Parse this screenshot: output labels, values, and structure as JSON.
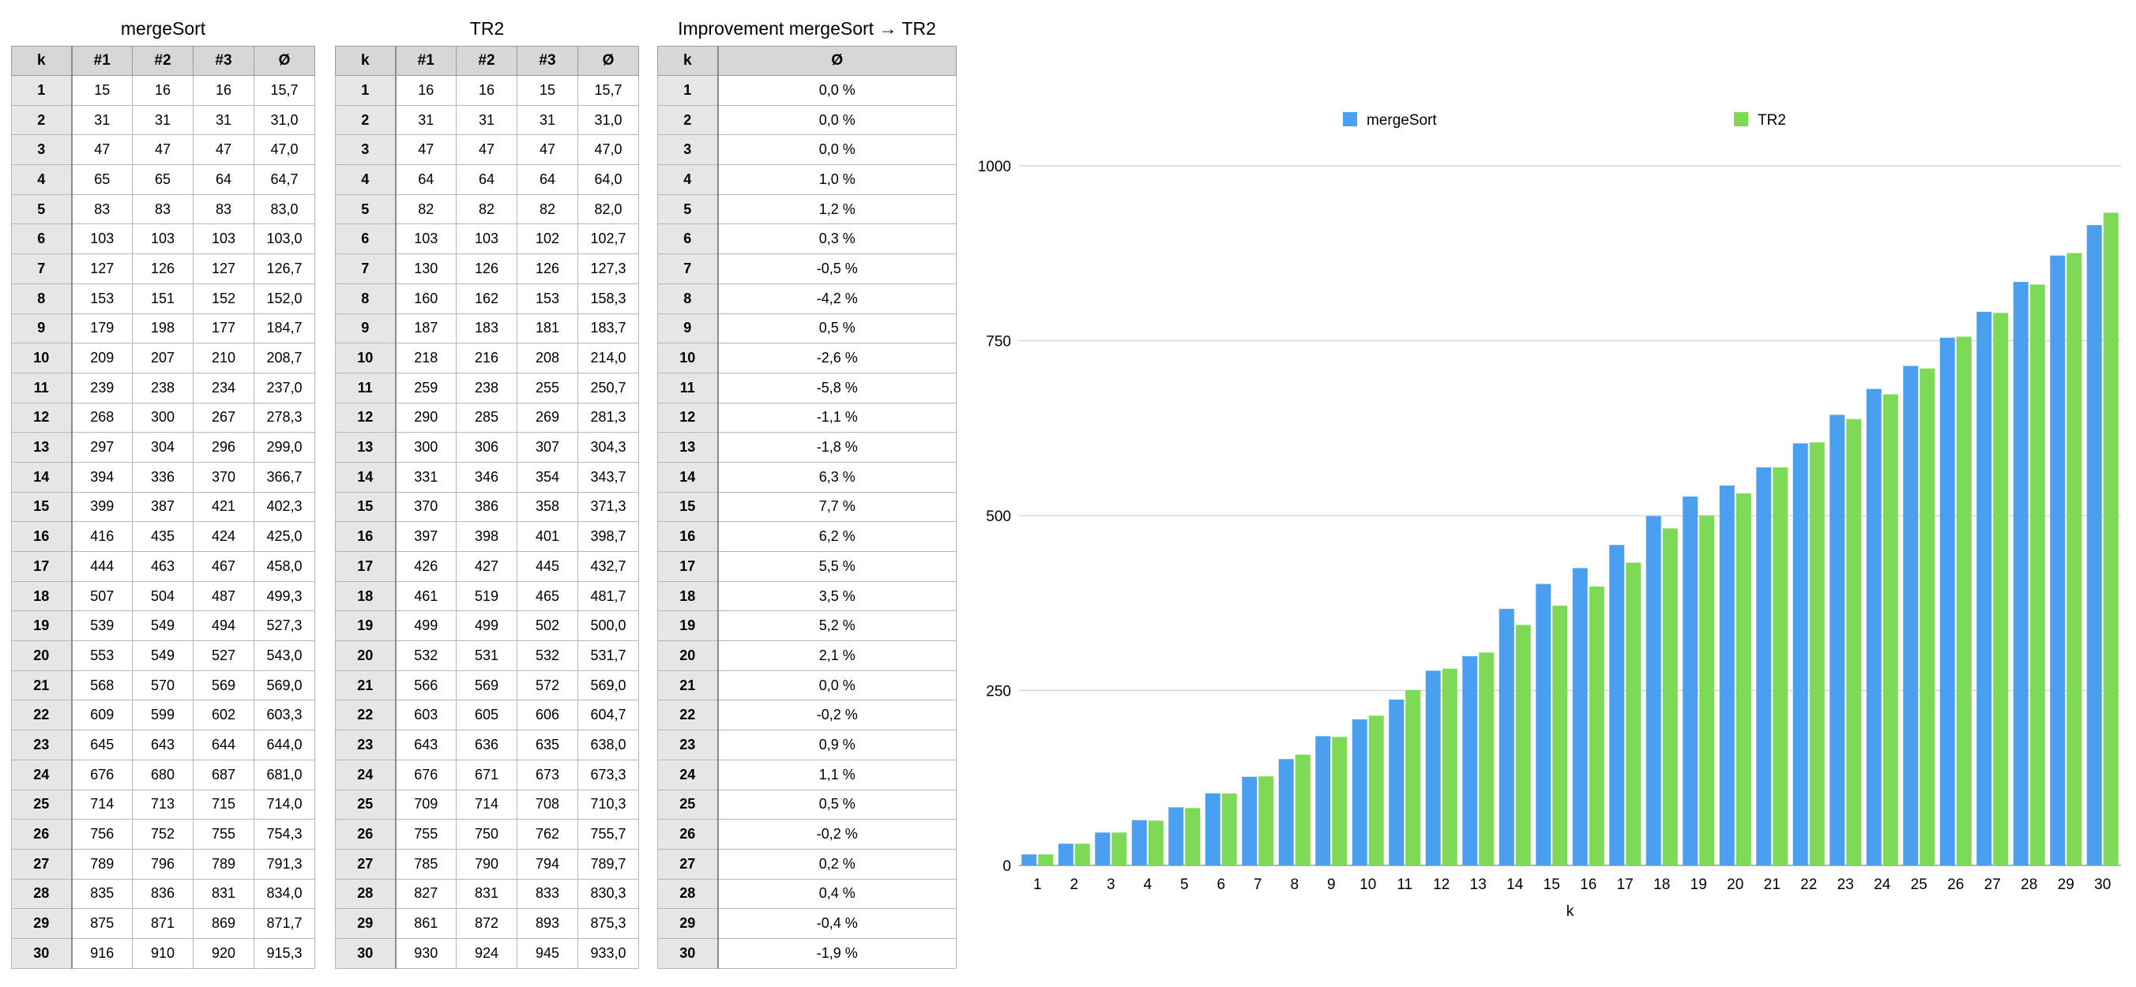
{
  "tables": {
    "merge": {
      "title": "mergeSort",
      "headers": [
        "k",
        "#1",
        "#2",
        "#3",
        "Ø"
      ],
      "rows": [
        [
          "1",
          "15",
          "16",
          "16",
          "15,7"
        ],
        [
          "2",
          "31",
          "31",
          "31",
          "31,0"
        ],
        [
          "3",
          "47",
          "47",
          "47",
          "47,0"
        ],
        [
          "4",
          "65",
          "65",
          "64",
          "64,7"
        ],
        [
          "5",
          "83",
          "83",
          "83",
          "83,0"
        ],
        [
          "6",
          "103",
          "103",
          "103",
          "103,0"
        ],
        [
          "7",
          "127",
          "126",
          "127",
          "126,7"
        ],
        [
          "8",
          "153",
          "151",
          "152",
          "152,0"
        ],
        [
          "9",
          "179",
          "198",
          "177",
          "184,7"
        ],
        [
          "10",
          "209",
          "207",
          "210",
          "208,7"
        ],
        [
          "11",
          "239",
          "238",
          "234",
          "237,0"
        ],
        [
          "12",
          "268",
          "300",
          "267",
          "278,3"
        ],
        [
          "13",
          "297",
          "304",
          "296",
          "299,0"
        ],
        [
          "14",
          "394",
          "336",
          "370",
          "366,7"
        ],
        [
          "15",
          "399",
          "387",
          "421",
          "402,3"
        ],
        [
          "16",
          "416",
          "435",
          "424",
          "425,0"
        ],
        [
          "17",
          "444",
          "463",
          "467",
          "458,0"
        ],
        [
          "18",
          "507",
          "504",
          "487",
          "499,3"
        ],
        [
          "19",
          "539",
          "549",
          "494",
          "527,3"
        ],
        [
          "20",
          "553",
          "549",
          "527",
          "543,0"
        ],
        [
          "21",
          "568",
          "570",
          "569",
          "569,0"
        ],
        [
          "22",
          "609",
          "599",
          "602",
          "603,3"
        ],
        [
          "23",
          "645",
          "643",
          "644",
          "644,0"
        ],
        [
          "24",
          "676",
          "680",
          "687",
          "681,0"
        ],
        [
          "25",
          "714",
          "713",
          "715",
          "714,0"
        ],
        [
          "26",
          "756",
          "752",
          "755",
          "754,3"
        ],
        [
          "27",
          "789",
          "796",
          "789",
          "791,3"
        ],
        [
          "28",
          "835",
          "836",
          "831",
          "834,0"
        ],
        [
          "29",
          "875",
          "871",
          "869",
          "871,7"
        ],
        [
          "30",
          "916",
          "910",
          "920",
          "915,3"
        ]
      ]
    },
    "tr2": {
      "title": "TR2",
      "headers": [
        "k",
        "#1",
        "#2",
        "#3",
        "Ø"
      ],
      "rows": [
        [
          "1",
          "16",
          "16",
          "15",
          "15,7"
        ],
        [
          "2",
          "31",
          "31",
          "31",
          "31,0"
        ],
        [
          "3",
          "47",
          "47",
          "47",
          "47,0"
        ],
        [
          "4",
          "64",
          "64",
          "64",
          "64,0"
        ],
        [
          "5",
          "82",
          "82",
          "82",
          "82,0"
        ],
        [
          "6",
          "103",
          "103",
          "102",
          "102,7"
        ],
        [
          "7",
          "130",
          "126",
          "126",
          "127,3"
        ],
        [
          "8",
          "160",
          "162",
          "153",
          "158,3"
        ],
        [
          "9",
          "187",
          "183",
          "181",
          "183,7"
        ],
        [
          "10",
          "218",
          "216",
          "208",
          "214,0"
        ],
        [
          "11",
          "259",
          "238",
          "255",
          "250,7"
        ],
        [
          "12",
          "290",
          "285",
          "269",
          "281,3"
        ],
        [
          "13",
          "300",
          "306",
          "307",
          "304,3"
        ],
        [
          "14",
          "331",
          "346",
          "354",
          "343,7"
        ],
        [
          "15",
          "370",
          "386",
          "358",
          "371,3"
        ],
        [
          "16",
          "397",
          "398",
          "401",
          "398,7"
        ],
        [
          "17",
          "426",
          "427",
          "445",
          "432,7"
        ],
        [
          "18",
          "461",
          "519",
          "465",
          "481,7"
        ],
        [
          "19",
          "499",
          "499",
          "502",
          "500,0"
        ],
        [
          "20",
          "532",
          "531",
          "532",
          "531,7"
        ],
        [
          "21",
          "566",
          "569",
          "572",
          "569,0"
        ],
        [
          "22",
          "603",
          "605",
          "606",
          "604,7"
        ],
        [
          "23",
          "643",
          "636",
          "635",
          "638,0"
        ],
        [
          "24",
          "676",
          "671",
          "673",
          "673,3"
        ],
        [
          "25",
          "709",
          "714",
          "708",
          "710,3"
        ],
        [
          "26",
          "755",
          "750",
          "762",
          "755,7"
        ],
        [
          "27",
          "785",
          "790",
          "794",
          "789,7"
        ],
        [
          "28",
          "827",
          "831",
          "833",
          "830,3"
        ],
        [
          "29",
          "861",
          "872",
          "893",
          "875,3"
        ],
        [
          "30",
          "930",
          "924",
          "945",
          "933,0"
        ]
      ]
    },
    "improvement": {
      "title": "Improvement mergeSort → TR2",
      "headers": [
        "k",
        "Ø"
      ],
      "rows": [
        [
          "1",
          "0,0 %"
        ],
        [
          "2",
          "0,0 %"
        ],
        [
          "3",
          "0,0 %"
        ],
        [
          "4",
          "1,0 %"
        ],
        [
          "5",
          "1,2 %"
        ],
        [
          "6",
          "0,3 %"
        ],
        [
          "7",
          "-0,5 %"
        ],
        [
          "8",
          "-4,2 %"
        ],
        [
          "9",
          "0,5 %"
        ],
        [
          "10",
          "-2,6 %"
        ],
        [
          "11",
          "-5,8 %"
        ],
        [
          "12",
          "-1,1 %"
        ],
        [
          "13",
          "-1,8 %"
        ],
        [
          "14",
          "6,3 %"
        ],
        [
          "15",
          "7,7 %"
        ],
        [
          "16",
          "6,2 %"
        ],
        [
          "17",
          "5,5 %"
        ],
        [
          "18",
          "3,5 %"
        ],
        [
          "19",
          "5,2 %"
        ],
        [
          "20",
          "2,1 %"
        ],
        [
          "21",
          "0,0 %"
        ],
        [
          "22",
          "-0,2 %"
        ],
        [
          "23",
          "0,9 %"
        ],
        [
          "24",
          "1,1 %"
        ],
        [
          "25",
          "0,5 %"
        ],
        [
          "26",
          "-0,2 %"
        ],
        [
          "27",
          "0,2 %"
        ],
        [
          "28",
          "0,4 %"
        ],
        [
          "29",
          "-0,4 %"
        ],
        [
          "30",
          "-1,9 %"
        ]
      ]
    }
  },
  "chart_data": {
    "type": "bar",
    "title": "",
    "xlabel": "k",
    "ylabel": "",
    "ylim": [
      0,
      1000
    ],
    "yticks": [
      0,
      250,
      500,
      750,
      1000
    ],
    "grid": true,
    "legend": "top",
    "categories": [
      "1",
      "2",
      "3",
      "4",
      "5",
      "6",
      "7",
      "8",
      "9",
      "10",
      "11",
      "12",
      "13",
      "14",
      "15",
      "16",
      "17",
      "18",
      "19",
      "20",
      "21",
      "22",
      "23",
      "24",
      "25",
      "26",
      "27",
      "28",
      "29",
      "30"
    ],
    "series": [
      {
        "name": "mergeSort",
        "color": "#4a9ff0",
        "values": [
          15.7,
          31.0,
          47.0,
          64.7,
          83.0,
          103.0,
          126.7,
          152.0,
          184.7,
          208.7,
          237.0,
          278.3,
          299.0,
          366.7,
          402.3,
          425.0,
          458.0,
          499.3,
          527.3,
          543.0,
          569.0,
          603.3,
          644.0,
          681.0,
          714.0,
          754.3,
          791.3,
          834.0,
          871.7,
          915.3
        ]
      },
      {
        "name": "TR2",
        "color": "#7ed957",
        "values": [
          15.7,
          31.0,
          47.0,
          64.0,
          82.0,
          102.7,
          127.3,
          158.3,
          183.7,
          214.0,
          250.7,
          281.3,
          304.3,
          343.7,
          371.3,
          398.7,
          432.7,
          481.7,
          500.0,
          531.7,
          569.0,
          604.7,
          638.0,
          673.3,
          710.3,
          755.7,
          789.7,
          830.3,
          875.3,
          933.0
        ]
      }
    ]
  }
}
